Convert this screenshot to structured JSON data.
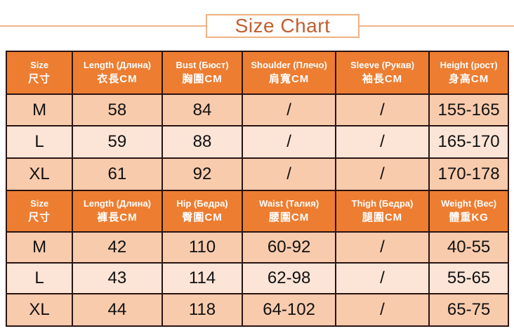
{
  "title": {
    "text": "Size Chart"
  },
  "colors": {
    "header_bg": "#ed7d31",
    "row_dark": "#f8cbad",
    "row_light": "#fce4d6",
    "header_text": "#ffffff",
    "cell_text": "#111111",
    "table_border": "#2a1414",
    "title_text": "#c25e2e",
    "title_border": "#f0b183",
    "title_rule": "#f2b48e"
  },
  "table_top": {
    "headers": [
      {
        "en": "Size",
        "zh": "尺寸"
      },
      {
        "en": "Length (Длина)",
        "zh": "衣長CM"
      },
      {
        "en": "Bust (Бюст)",
        "zh": "胸圍CM"
      },
      {
        "en": "Shoulder (Плечо)",
        "zh": "肩寬CM"
      },
      {
        "en": "Sleeve (Рукав)",
        "zh": "袖長CM"
      },
      {
        "en": "Height (рост)",
        "zh": "身高CM"
      }
    ],
    "rows": [
      [
        "M",
        "58",
        "84",
        "/",
        "/",
        "155-165"
      ],
      [
        "L",
        "59",
        "88",
        "/",
        "/",
        "165-170"
      ],
      [
        "XL",
        "61",
        "92",
        "/",
        "/",
        "170-178"
      ]
    ]
  },
  "table_bottom": {
    "headers": [
      {
        "en": "Size",
        "zh": "尺寸"
      },
      {
        "en": "Length (Длина)",
        "zh": "褲長CM"
      },
      {
        "en": "Hip (Бедра)",
        "zh": "臀圍CM"
      },
      {
        "en": "Waist (Талия)",
        "zh": "腰圍CM"
      },
      {
        "en": "Thigh (Бедра)",
        "zh": "腿圍CM"
      },
      {
        "en": "Weight (Вес)",
        "zh": "體重KG"
      }
    ],
    "rows": [
      [
        "M",
        "42",
        "110",
        "60-92",
        "/",
        "40-55"
      ],
      [
        "L",
        "43",
        "114",
        "62-98",
        "/",
        "55-65"
      ],
      [
        "XL",
        "44",
        "118",
        "64-102",
        "/",
        "65-75"
      ]
    ]
  }
}
